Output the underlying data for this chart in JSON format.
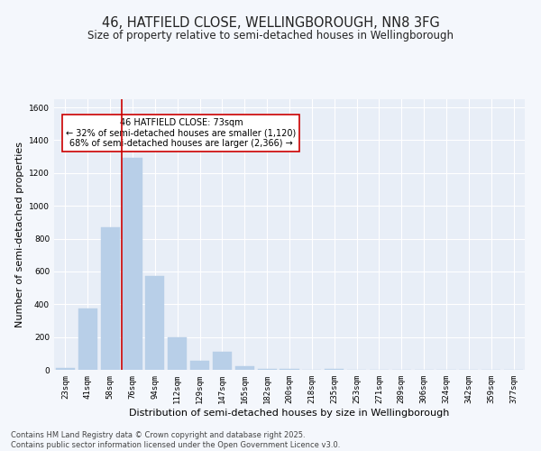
{
  "title": "46, HATFIELD CLOSE, WELLINGBOROUGH, NN8 3FG",
  "subtitle": "Size of property relative to semi-detached houses in Wellingborough",
  "xlabel": "Distribution of semi-detached houses by size in Wellingborough",
  "ylabel": "Number of semi-detached properties",
  "categories": [
    "23sqm",
    "41sqm",
    "58sqm",
    "76sqm",
    "94sqm",
    "112sqm",
    "129sqm",
    "147sqm",
    "165sqm",
    "182sqm",
    "200sqm",
    "218sqm",
    "235sqm",
    "253sqm",
    "271sqm",
    "289sqm",
    "306sqm",
    "324sqm",
    "342sqm",
    "359sqm",
    "377sqm"
  ],
  "values": [
    10,
    375,
    870,
    1290,
    570,
    200,
    55,
    110,
    20,
    5,
    5,
    0,
    3,
    0,
    0,
    0,
    0,
    0,
    0,
    0,
    0
  ],
  "bar_color": "#b8cfe8",
  "bar_edge_color": "#b8cfe8",
  "vline_color": "#cc0000",
  "annotation_text": "46 HATFIELD CLOSE: 73sqm\n← 32% of semi-detached houses are smaller (1,120)\n68% of semi-detached houses are larger (2,366) →",
  "annotation_box_color": "#ffffff",
  "annotation_box_edge": "#cc0000",
  "ylim": [
    0,
    1650
  ],
  "yticks": [
    0,
    200,
    400,
    600,
    800,
    1000,
    1200,
    1400,
    1600
  ],
  "footer": "Contains HM Land Registry data © Crown copyright and database right 2025.\nContains public sector information licensed under the Open Government Licence v3.0.",
  "bg_color": "#f4f7fc",
  "plot_bg_color": "#e8eef7",
  "grid_color": "#ffffff",
  "title_fontsize": 10.5,
  "subtitle_fontsize": 8.5,
  "axis_label_fontsize": 8,
  "tick_fontsize": 6.5,
  "footer_fontsize": 6,
  "ann_fontsize": 7
}
